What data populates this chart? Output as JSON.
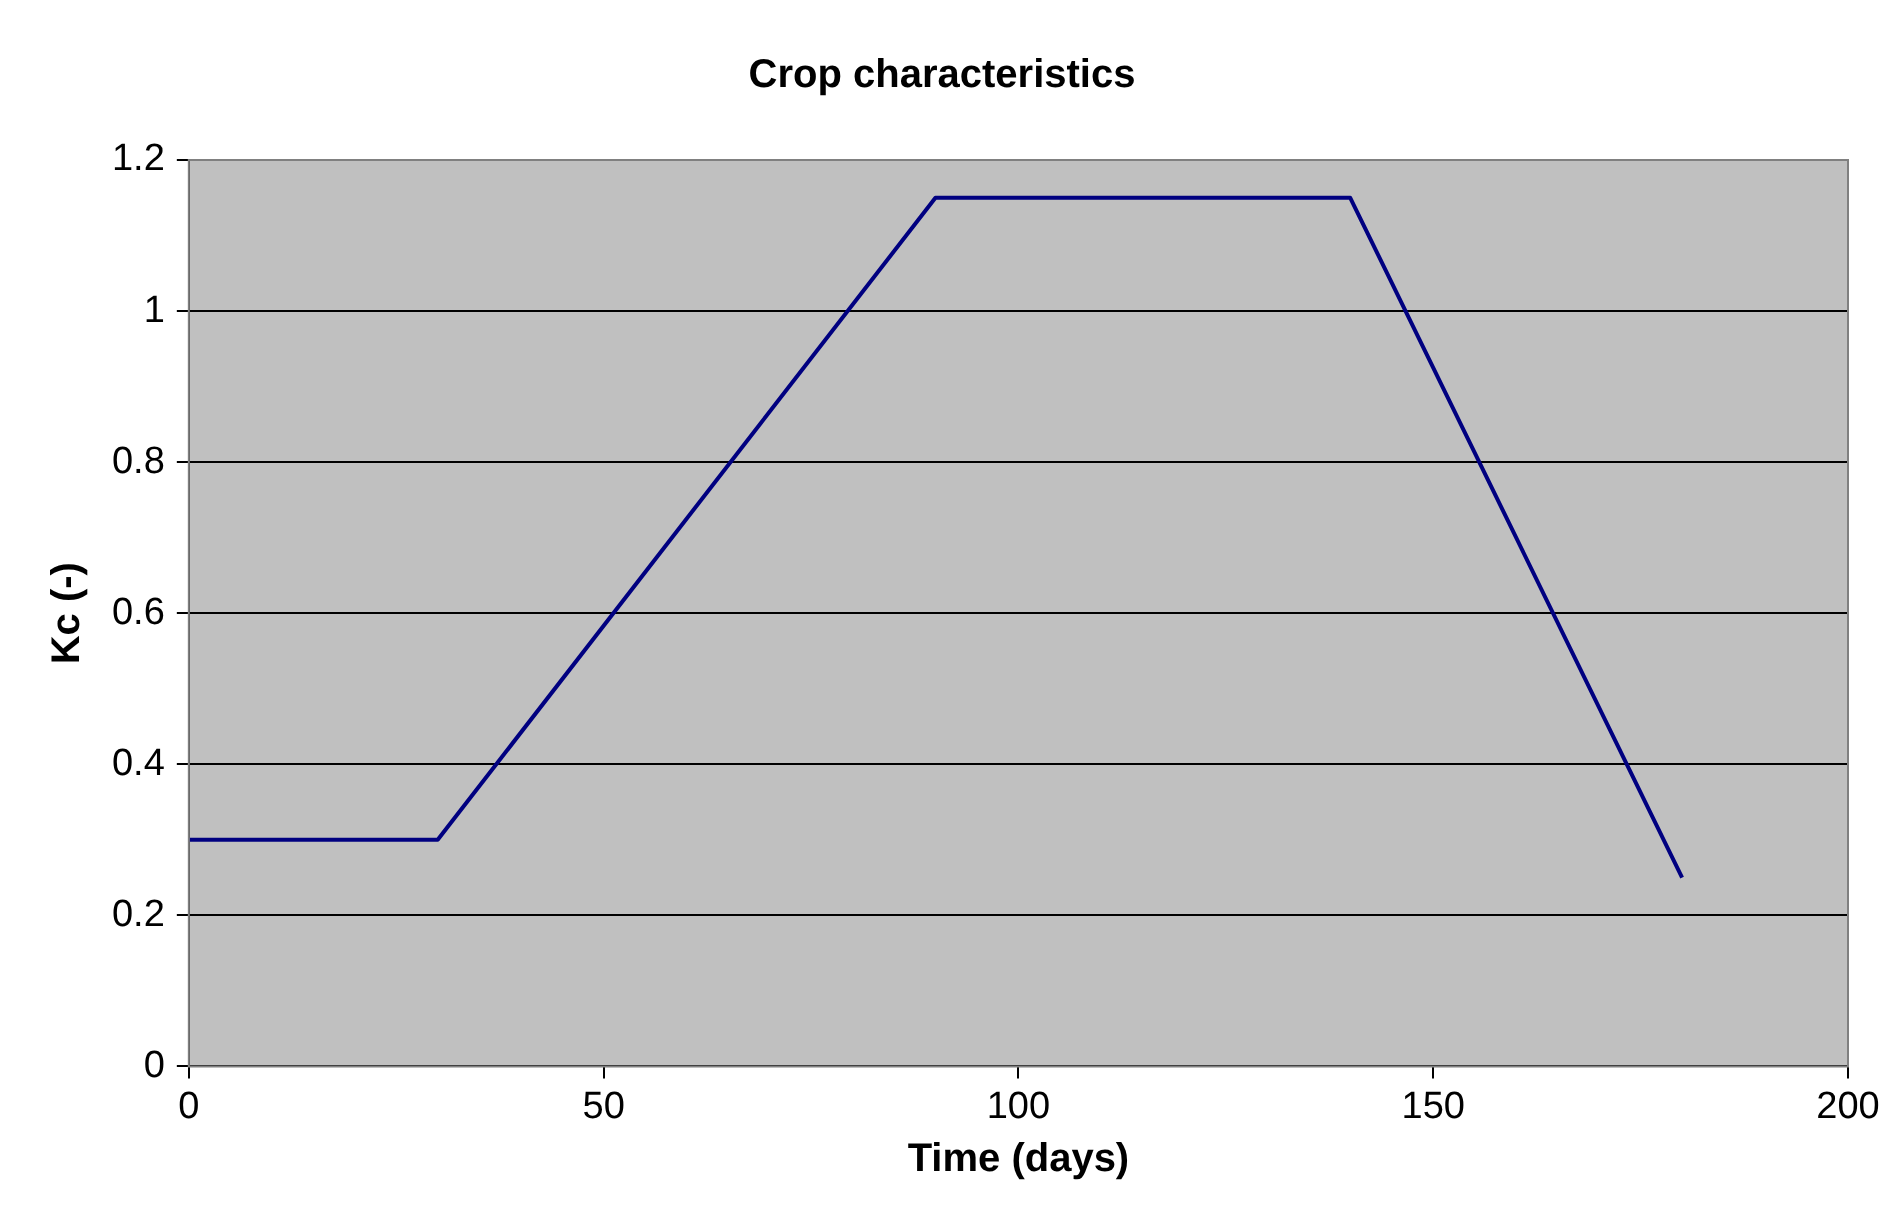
{
  "chart_data": {
    "type": "line",
    "title": "Crop characteristics",
    "xlabel": "Time (days)",
    "ylabel": "Kc (-)",
    "x": [
      0,
      30,
      90,
      140,
      180
    ],
    "series": [
      {
        "color": "#000080",
        "values": [
          0.3,
          0.3,
          1.15,
          1.15,
          0.25
        ]
      }
    ],
    "xlim": [
      0,
      200
    ],
    "xticks": [
      0,
      50,
      100,
      150,
      200
    ],
    "ylim": [
      0,
      1.2
    ],
    "yticks": [
      0,
      0.2,
      0.4,
      0.6,
      0.8,
      1,
      1.2
    ],
    "grid": "y",
    "legend": false,
    "marker": "none",
    "line_style": "solid"
  }
}
